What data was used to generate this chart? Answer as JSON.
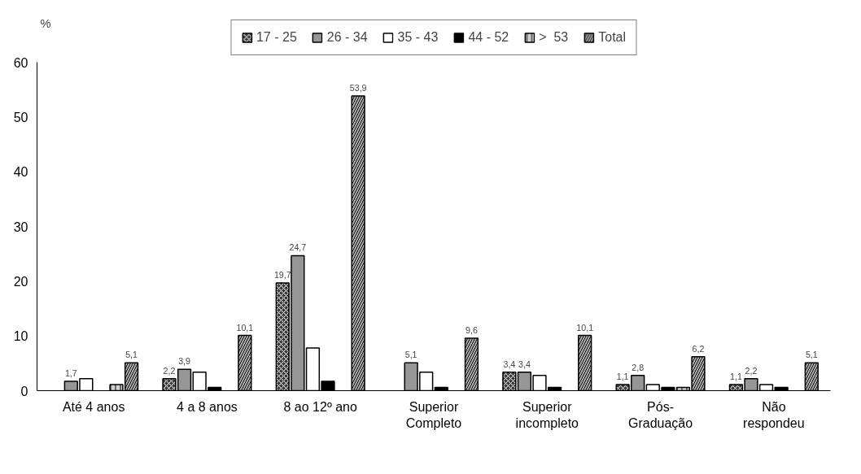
{
  "chart_data": {
    "type": "bar",
    "ylabel": "%",
    "categories": [
      "Até 4 anos",
      "4 a 8 anos",
      "8 ao 12º ano",
      "Superior Completo",
      "Superior incompleto",
      "Pós-Graduação",
      "Não respondeu"
    ],
    "series": [
      {
        "name": "17 - 25",
        "color": "#404040",
        "values": [
          null,
          2.2,
          19.7,
          null,
          3.4,
          1.1,
          1.1
        ],
        "value_labels": [
          null,
          "2,2",
          "19,7",
          null,
          "3,4",
          "1,1",
          "1,1"
        ]
      },
      {
        "name": "26 - 34",
        "color": "#969696",
        "values": [
          1.7,
          3.9,
          24.7,
          5.1,
          3.4,
          2.8,
          2.2
        ],
        "value_labels": [
          "1,7",
          "3,9",
          "24,7",
          "5,1",
          "3,4",
          "2,8",
          "2,2"
        ]
      },
      {
        "name": "35 - 43",
        "color": "#ffffff",
        "values": [
          2.2,
          3.4,
          7.8,
          3.4,
          2.8,
          1.1,
          1.1
        ]
      },
      {
        "name": "44 - 52",
        "color": "#000000",
        "values": [
          null,
          0.6,
          1.7,
          0.6,
          0.6,
          0.6,
          0.6
        ]
      },
      {
        "name": ">  53",
        "color": "#d0d0d0",
        "values": [
          1.1,
          null,
          null,
          null,
          null,
          0.6,
          null
        ]
      },
      {
        "name": "Total",
        "color": "#b0b0b0",
        "values": [
          5.1,
          10.1,
          53.9,
          9.6,
          10.1,
          6.2,
          5.1
        ],
        "value_labels": [
          "5,1",
          "10,1",
          "53,9",
          "9,6",
          "10,1",
          "6,2",
          "5,1"
        ]
      }
    ],
    "ylim": [
      0,
      60
    ],
    "yticks": [
      0,
      10,
      20,
      30,
      40,
      50,
      60
    ],
    "grid": false,
    "legend": "top"
  }
}
